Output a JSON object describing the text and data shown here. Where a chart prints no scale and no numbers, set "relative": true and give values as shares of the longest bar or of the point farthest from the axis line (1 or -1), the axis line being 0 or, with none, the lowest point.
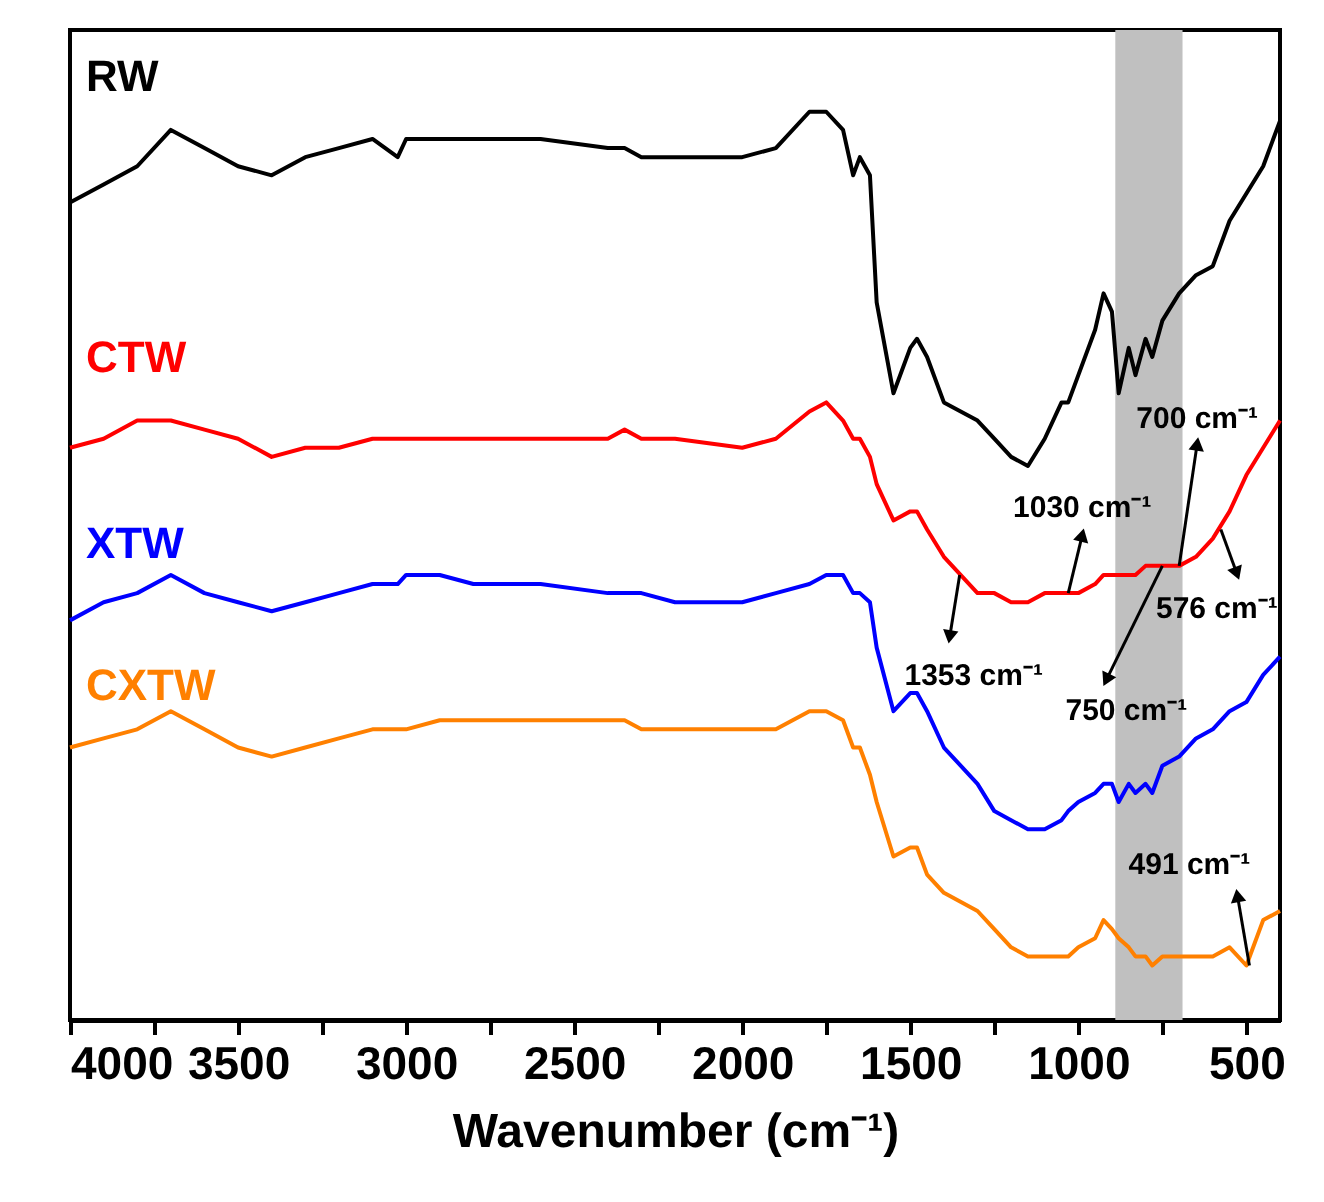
{
  "chart_data": {
    "type": "line",
    "relative": true,
    "xlabel": "Wavenumber (cm⁻¹)",
    "xlim": [
      4000,
      400
    ],
    "xticks": [
      4000,
      {
        "value": 3750,
        "label": null
      },
      3500,
      {
        "value": 3250,
        "label": null
      },
      3000,
      {
        "value": 2750,
        "label": null
      },
      2500,
      {
        "value": 2250,
        "label": null
      },
      2000,
      {
        "value": 1750,
        "label": null
      },
      1500,
      {
        "value": 1250,
        "label": null
      },
      1000,
      {
        "value": 750,
        "label": null
      },
      500
    ],
    "x": [
      4000,
      3900,
      3800,
      3700,
      3600,
      3500,
      3400,
      3300,
      3200,
      3100,
      3025,
      3000,
      2900,
      2800,
      2600,
      2400,
      2350,
      2300,
      2200,
      2000,
      1900,
      1800,
      1750,
      1700,
      1670,
      1650,
      1620,
      1600,
      1550,
      1500,
      1480,
      1450,
      1400,
      1300,
      1250,
      1200,
      1150,
      1100,
      1050,
      1030,
      1000,
      950,
      925,
      900,
      880,
      850,
      830,
      800,
      780,
      750,
      700,
      650,
      600,
      550,
      500,
      450,
      400
    ],
    "series": [
      {
        "name": "RW",
        "color": "#000000",
        "values": [
          0.9,
          0.92,
          0.94,
          0.98,
          0.96,
          0.94,
          0.93,
          0.95,
          0.96,
          0.97,
          0.95,
          0.97,
          0.97,
          0.97,
          0.97,
          0.96,
          0.96,
          0.95,
          0.95,
          0.95,
          0.96,
          1.0,
          1.0,
          0.98,
          0.93,
          0.95,
          0.93,
          0.79,
          0.69,
          0.74,
          0.75,
          0.73,
          0.68,
          0.66,
          0.64,
          0.62,
          0.61,
          0.64,
          0.68,
          0.68,
          0.71,
          0.76,
          0.8,
          0.78,
          0.69,
          0.74,
          0.71,
          0.75,
          0.73,
          0.77,
          0.8,
          0.82,
          0.83,
          0.88,
          0.91,
          0.94,
          0.99
        ]
      },
      {
        "name": "CTW",
        "color": "#ff0000",
        "values": [
          0.63,
          0.64,
          0.66,
          0.66,
          0.65,
          0.64,
          0.62,
          0.63,
          0.63,
          0.64,
          0.64,
          0.64,
          0.64,
          0.64,
          0.64,
          0.64,
          0.65,
          0.64,
          0.64,
          0.63,
          0.64,
          0.67,
          0.68,
          0.66,
          0.64,
          0.64,
          0.62,
          0.59,
          0.55,
          0.56,
          0.56,
          0.54,
          0.51,
          0.47,
          0.47,
          0.46,
          0.46,
          0.47,
          0.47,
          0.47,
          0.47,
          0.48,
          0.49,
          0.49,
          0.49,
          0.49,
          0.49,
          0.5,
          0.5,
          0.5,
          0.5,
          0.51,
          0.53,
          0.56,
          0.6,
          0.63,
          0.66
        ]
      },
      {
        "name": "XTW",
        "color": "#0000ff",
        "values": [
          0.44,
          0.46,
          0.47,
          0.49,
          0.47,
          0.46,
          0.45,
          0.46,
          0.47,
          0.48,
          0.48,
          0.49,
          0.49,
          0.48,
          0.48,
          0.47,
          0.47,
          0.47,
          0.46,
          0.46,
          0.47,
          0.48,
          0.49,
          0.49,
          0.47,
          0.47,
          0.46,
          0.41,
          0.34,
          0.36,
          0.36,
          0.34,
          0.3,
          0.26,
          0.23,
          0.22,
          0.21,
          0.21,
          0.22,
          0.23,
          0.24,
          0.25,
          0.26,
          0.26,
          0.24,
          0.26,
          0.25,
          0.26,
          0.25,
          0.28,
          0.29,
          0.31,
          0.32,
          0.34,
          0.35,
          0.38,
          0.4
        ]
      },
      {
        "name": "CXTW",
        "color": "#ff8000",
        "values": [
          0.3,
          0.31,
          0.32,
          0.34,
          0.32,
          0.3,
          0.29,
          0.3,
          0.31,
          0.32,
          0.32,
          0.32,
          0.33,
          0.33,
          0.33,
          0.33,
          0.33,
          0.32,
          0.32,
          0.32,
          0.32,
          0.34,
          0.34,
          0.33,
          0.3,
          0.3,
          0.27,
          0.24,
          0.18,
          0.19,
          0.19,
          0.16,
          0.14,
          0.12,
          0.1,
          0.08,
          0.07,
          0.07,
          0.07,
          0.07,
          0.08,
          0.09,
          0.11,
          0.1,
          0.09,
          0.08,
          0.07,
          0.07,
          0.06,
          0.07,
          0.07,
          0.07,
          0.07,
          0.08,
          0.06,
          0.11,
          0.12
        ]
      }
    ],
    "bands": [
      {
        "axis": "x",
        "from": 890,
        "to": 690,
        "color": "#c0c0c0"
      }
    ],
    "annotations": [
      {
        "text": "1030 cm⁻¹",
        "x": 1030,
        "y": 0.47
      },
      {
        "text": "700 cm⁻¹",
        "x": 700,
        "y": 0.5
      },
      {
        "text": "576 cm⁻¹",
        "x": 576,
        "y": 0.54
      },
      {
        "text": "750 cm⁻¹",
        "x": 750,
        "y": 0.5
      },
      {
        "text": "1353 cm⁻¹",
        "x": 1353,
        "y": 0.49
      },
      {
        "text": "491 cm⁻¹",
        "x": 491,
        "y": 0.06
      }
    ]
  }
}
